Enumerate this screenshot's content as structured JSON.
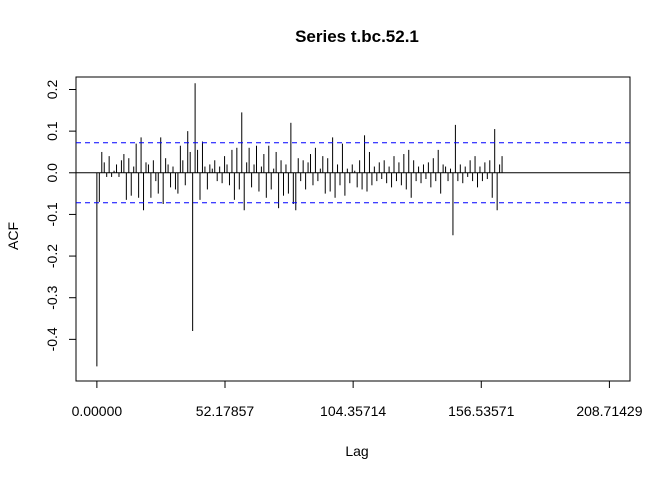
{
  "chart_data": {
    "type": "bar",
    "title": "Series  t.bc.52.1",
    "xlabel": "Lag",
    "ylabel": "ACF",
    "xlim": [
      -8.5,
      217.1
    ],
    "ylim": [
      -0.5,
      0.23
    ],
    "x_ticks": [
      {
        "value": 0,
        "label": "0.00000"
      },
      {
        "value": 52.17857,
        "label": "52.17857"
      },
      {
        "value": 104.35714,
        "label": "104.35714"
      },
      {
        "value": 156.53571,
        "label": "156.53571"
      },
      {
        "value": 208.71429,
        "label": "208.71429"
      }
    ],
    "y_ticks": [
      {
        "value": -0.4,
        "label": "-0.4"
      },
      {
        "value": -0.3,
        "label": "-0.3"
      },
      {
        "value": -0.2,
        "label": "-0.2"
      },
      {
        "value": -0.1,
        "label": "-0.1"
      },
      {
        "value": 0.0,
        "label": "0.0"
      },
      {
        "value": 0.1,
        "label": "0.1"
      },
      {
        "value": 0.2,
        "label": "0.2"
      }
    ],
    "confidence_bound": 0.072,
    "confidence_color": "#0000ff",
    "lag_step": 1,
    "values": [
      -0.465,
      -0.07,
      0.05,
      0.025,
      -0.01,
      0.04,
      -0.01,
      0.005,
      0.02,
      -0.01,
      0.03,
      0.045,
      -0.065,
      0.035,
      -0.055,
      0.015,
      0.07,
      -0.06,
      0.085,
      -0.09,
      0.025,
      0.02,
      -0.06,
      0.03,
      -0.02,
      -0.05,
      0.085,
      -0.075,
      0.035,
      0.02,
      -0.035,
      0.015,
      -0.04,
      -0.05,
      0.065,
      0.03,
      -0.03,
      0.1,
      0.05,
      -0.38,
      0.215,
      0.055,
      -0.065,
      0.075,
      0.015,
      -0.04,
      0.02,
      0.01,
      0.03,
      -0.02,
      0.015,
      -0.025,
      0.04,
      0.02,
      -0.03,
      0.055,
      -0.065,
      0.06,
      -0.04,
      0.145,
      -0.09,
      0.025,
      0.06,
      -0.035,
      0.02,
      0.065,
      -0.045,
      0.015,
      0.045,
      -0.06,
      0.065,
      -0.04,
      0.01,
      0.05,
      -0.085,
      0.03,
      -0.055,
      0.02,
      -0.05,
      0.12,
      -0.075,
      -0.09,
      0.035,
      -0.02,
      0.03,
      -0.04,
      0.025,
      0.045,
      -0.03,
      0.06,
      -0.02,
      0.01,
      0.04,
      -0.05,
      0.035,
      -0.045,
      0.085,
      -0.06,
      0.02,
      -0.03,
      0.07,
      -0.055,
      0.01,
      -0.025,
      0.02,
      0.005,
      -0.035,
      0.03,
      -0.04,
      0.09,
      -0.045,
      0.05,
      -0.03,
      0.015,
      -0.02,
      0.025,
      -0.015,
      0.03,
      -0.025,
      0.015,
      -0.035,
      0.04,
      -0.02,
      0.025,
      -0.03,
      0.045,
      -0.04,
      0.055,
      -0.06,
      0.03,
      -0.02,
      0.015,
      -0.025,
      0.02,
      -0.015,
      0.025,
      -0.035,
      0.035,
      -0.02,
      0.055,
      -0.05,
      0.02,
      0.015,
      -0.02,
      0.01,
      -0.15,
      0.115,
      -0.02,
      0.02,
      -0.025,
      0.015,
      -0.01,
      0.03,
      -0.02,
      0.04,
      -0.035,
      0.015,
      -0.02,
      0.025,
      -0.015,
      0.03,
      -0.06,
      0.105,
      -0.09,
      0.02,
      0.04
    ]
  }
}
